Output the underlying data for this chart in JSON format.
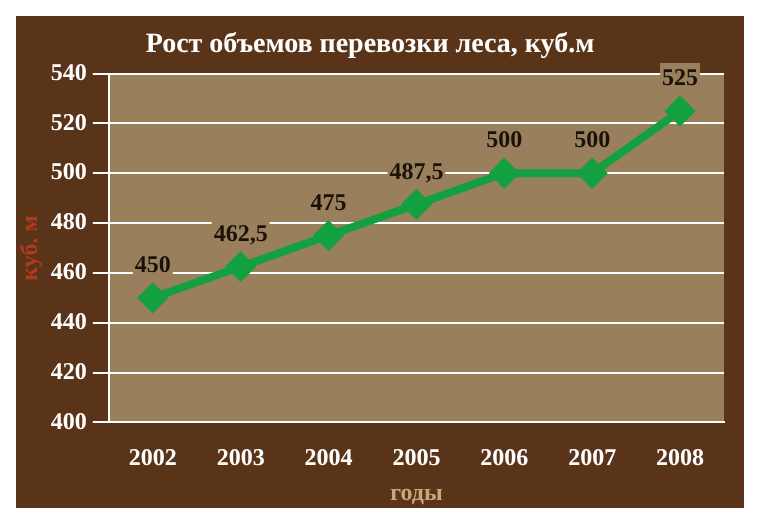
{
  "chart_data": {
    "type": "line",
    "title": "Рост объемов перевозки леса, куб.м",
    "xlabel": "годы",
    "ylabel": "куб. м",
    "categories": [
      "2002",
      "2003",
      "2004",
      "2005",
      "2006",
      "2007",
      "2008"
    ],
    "series": [
      {
        "color": "#12a040",
        "values": [
          450,
          462.5,
          475,
          487.5,
          500,
          500,
          525
        ],
        "value_labels": [
          "450",
          "462,5",
          "475",
          "487,5",
          "500",
          "500",
          "525"
        ]
      }
    ],
    "ylim": [
      400,
      540
    ],
    "yticks": [
      400,
      420,
      440,
      460,
      480,
      500,
      520,
      540
    ],
    "grid": "y",
    "legend": false,
    "marker": "diamond",
    "line_style": "solid"
  }
}
